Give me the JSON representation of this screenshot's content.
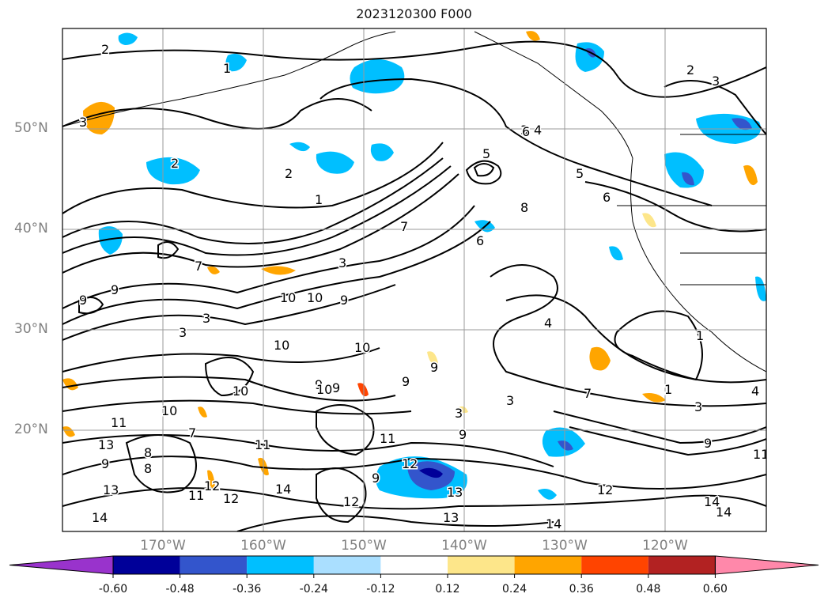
{
  "title": "2023120300 F000",
  "lat_labels": [
    "50°N",
    "40°N",
    "30°N",
    "20°N"
  ],
  "lon_labels": [
    "170°W",
    "160°W",
    "150°W",
    "140°W",
    "130°W",
    "120°W"
  ],
  "colorbar": {
    "ticks": [
      "-0.60",
      "-0.48",
      "-0.36",
      "-0.24",
      "-0.12",
      "0.12",
      "0.24",
      "0.36",
      "0.48",
      "0.60"
    ],
    "colors": [
      "#9933cc",
      "#000099",
      "#3355cc",
      "#00bfff",
      "#aadfff",
      "#ffffff",
      "#fde68a",
      "#ffa500",
      "#ff4400",
      "#b22222",
      "#ff88aa"
    ],
    "extend": "both"
  },
  "contour_labels": [
    "2",
    "1",
    "3",
    "2",
    "1",
    "2",
    "3",
    "2",
    "3",
    "4",
    "5",
    "6",
    "5",
    "6",
    "8",
    "6",
    "7",
    "7",
    "9",
    "9",
    "10",
    "10",
    "9",
    "3",
    "3",
    "3",
    "10",
    "9",
    "9",
    "9",
    "10",
    "10",
    "9",
    "8",
    "9",
    "7",
    "9",
    "10",
    "11",
    "12",
    "13",
    "14",
    "12",
    "13",
    "14",
    "11",
    "12",
    "13",
    "14",
    "12",
    "13",
    "14",
    "9",
    "7",
    "1",
    "3",
    "4",
    "3",
    "4",
    "1",
    "3",
    "9",
    "11",
    "14",
    "8",
    "10",
    "11",
    "11",
    "12"
  ]
}
